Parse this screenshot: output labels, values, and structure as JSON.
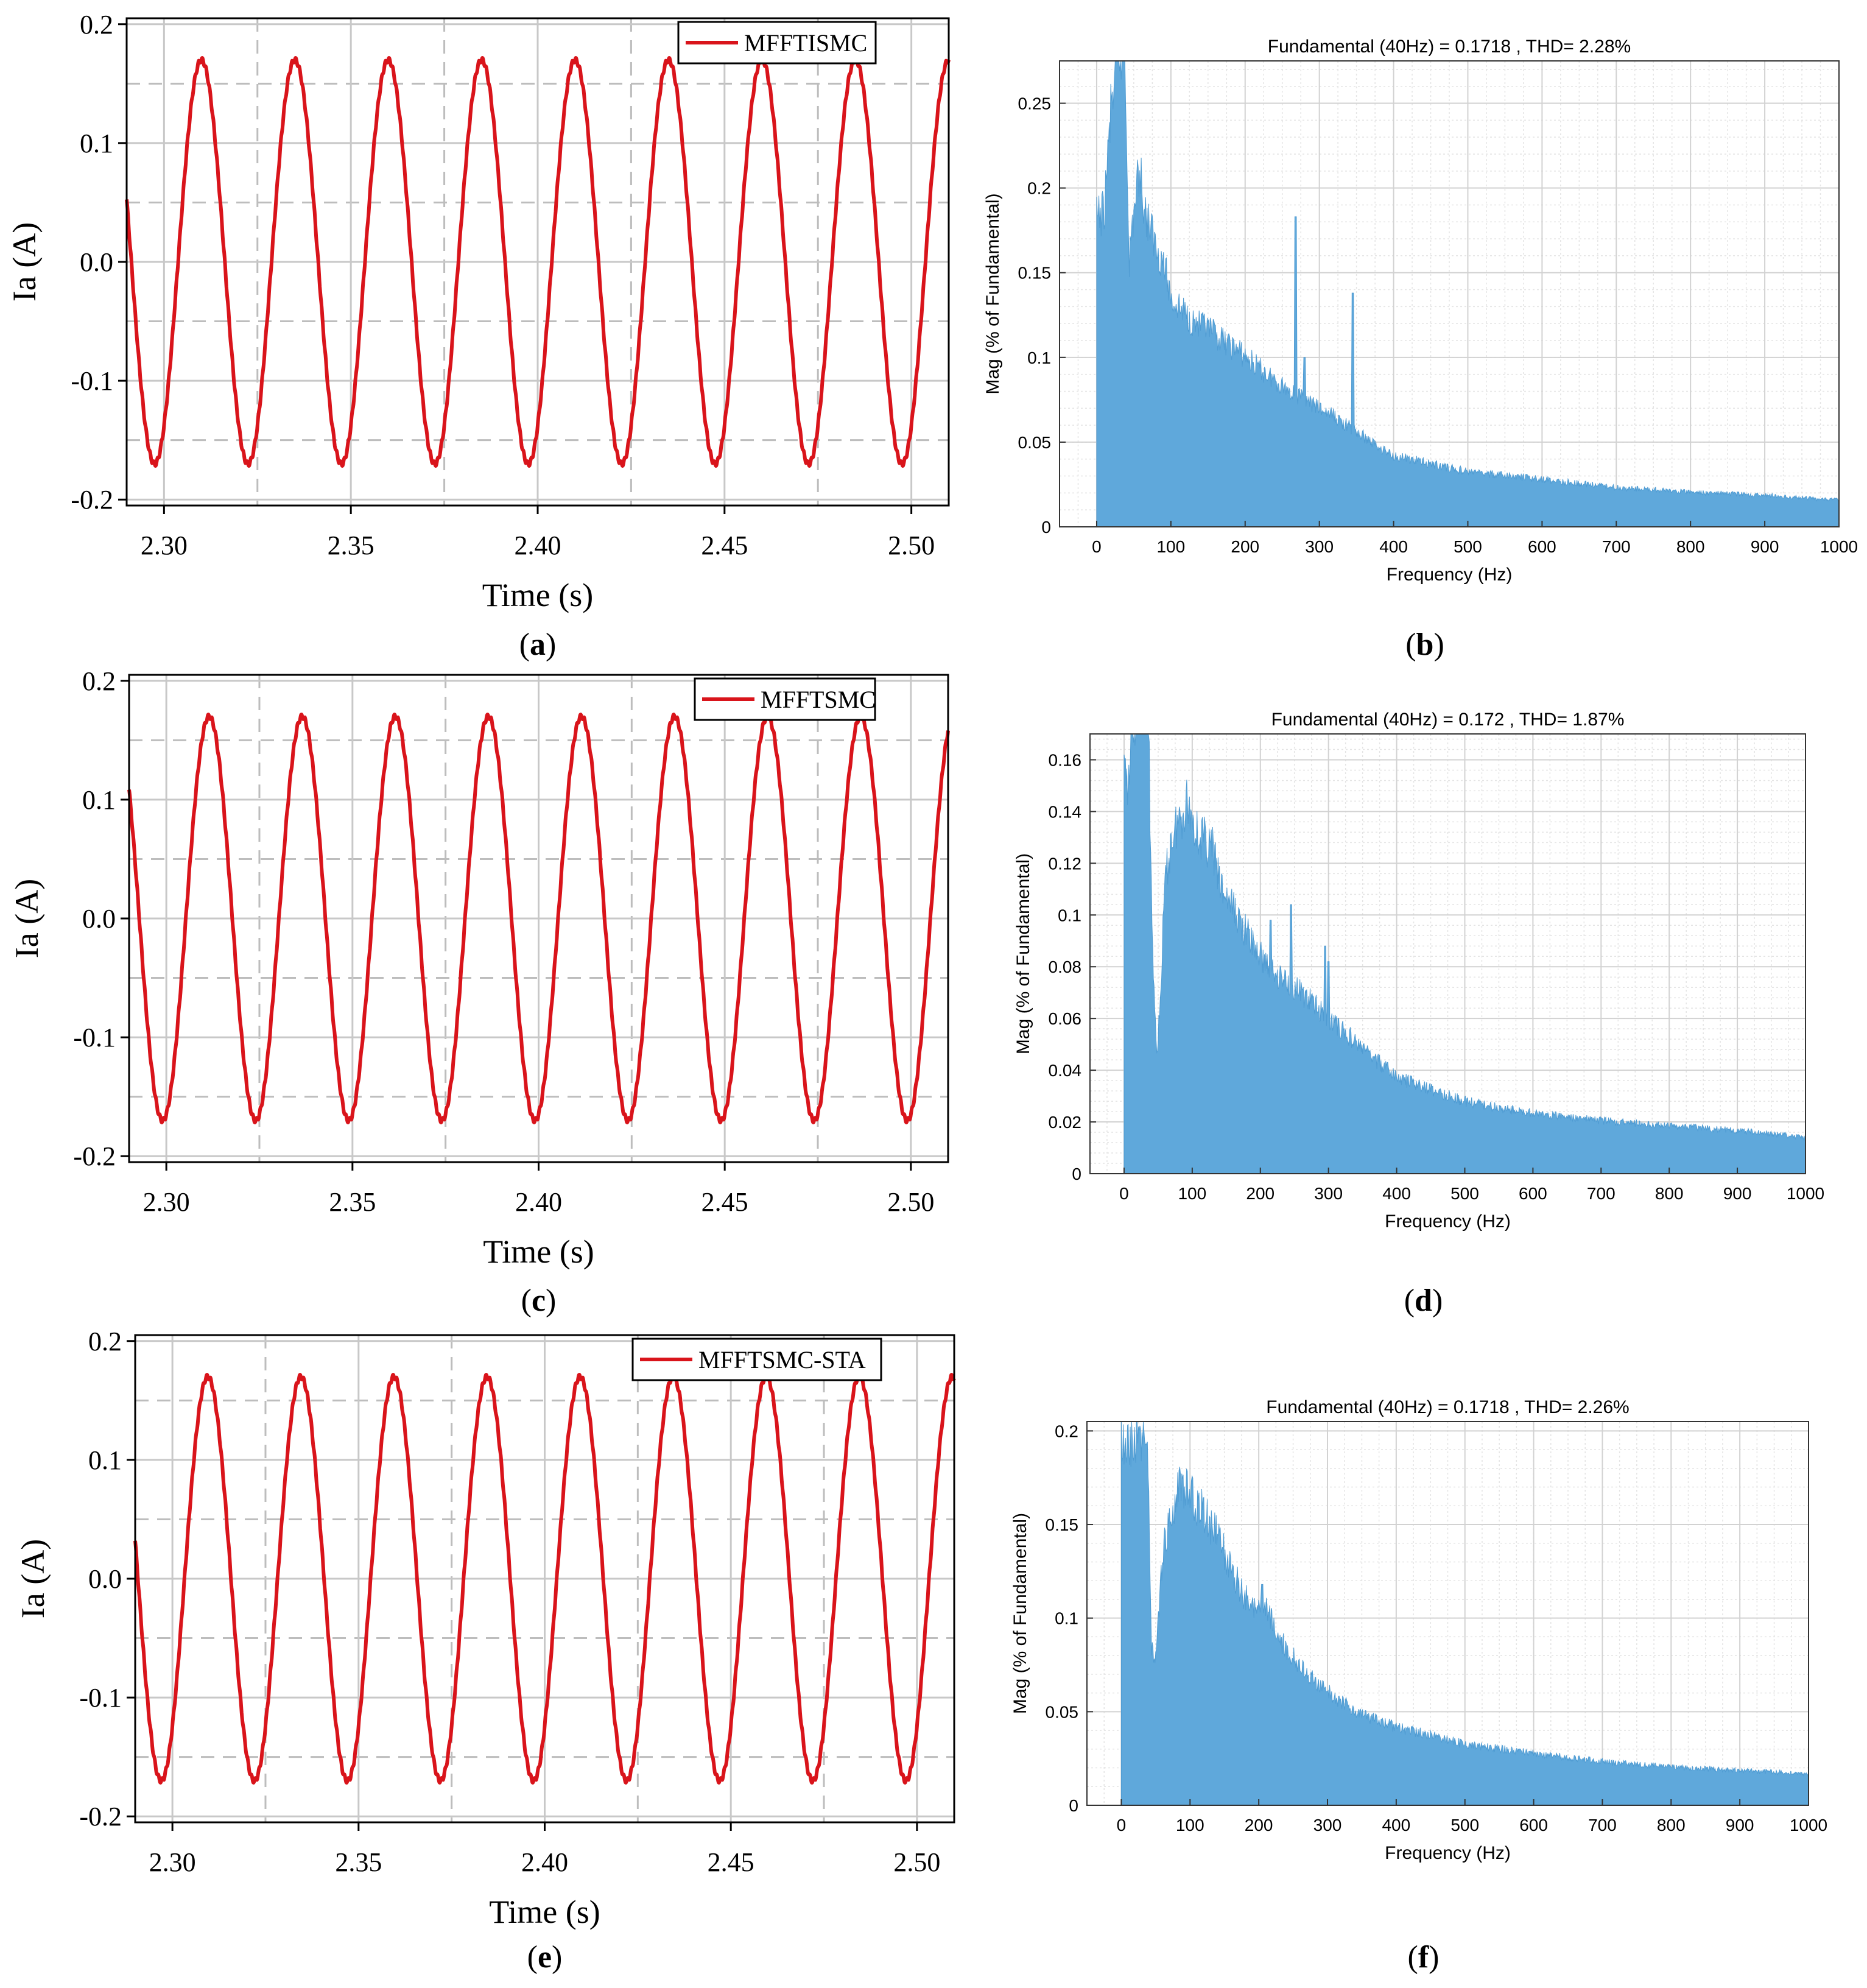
{
  "colors": {
    "signal": "#d9141b",
    "spectrum": "#5fa8db",
    "grid_major": "#c8c8c8",
    "grid_dash": "#bdbdbd",
    "axis": "#000000"
  },
  "chart_data": [
    {
      "panel": "a",
      "type": "line",
      "legend": "MFFTISMC",
      "xlabel": "Time (s)",
      "ylabel": "Ia (A)",
      "xlim": [
        2.29,
        2.51
      ],
      "ylim": [
        -0.205,
        0.205
      ],
      "xticks": [
        2.3,
        2.35,
        2.4,
        2.45,
        2.5
      ],
      "xtick_labels": [
        "2.30",
        "2.35",
        "2.40",
        "2.45",
        "2.50"
      ],
      "yticks": [
        0.2,
        0.1,
        0.0,
        -0.1,
        -0.2
      ],
      "ytick_labels": [
        "0.2",
        "0.1",
        "0.0",
        "-0.1",
        "-0.2"
      ],
      "amplitude": 0.17,
      "frequency_hz": 40,
      "peak_time": 2.31,
      "caption_label": "a"
    },
    {
      "panel": "b",
      "type": "bar",
      "title": "Fundamental (40Hz) = 0.1718 , THD= 2.28%",
      "xlabel": "Frequency (Hz)",
      "ylabel": "Mag (% of Fundamental)",
      "xlim": [
        -50,
        1000
      ],
      "ylim": [
        0,
        0.275
      ],
      "xticks": [
        0,
        100,
        200,
        300,
        400,
        500,
        600,
        700,
        800,
        900,
        1000
      ],
      "xtick_labels": [
        "0",
        "100",
        "200",
        "300",
        "400",
        "500",
        "600",
        "700",
        "800",
        "900",
        "1000"
      ],
      "yticks": [
        0,
        0.05,
        0.1,
        0.15,
        0.2,
        0.25
      ],
      "ytick_labels": [
        "0",
        "0.05",
        "0.1",
        "0.15",
        "0.2",
        "0.25"
      ],
      "envelope": {
        "f": [
          0,
          10,
          20,
          30,
          38,
          44,
          50,
          58,
          65,
          80,
          90,
          100,
          110,
          130,
          150,
          170,
          190,
          200,
          220,
          250,
          280,
          320,
          350,
          400,
          500,
          600,
          700,
          800,
          900,
          1000
        ],
        "m": [
          0.195,
          0.2,
          0.27,
          0.3,
          0.3,
          0.17,
          0.2,
          0.228,
          0.2,
          0.178,
          0.168,
          0.145,
          0.14,
          0.13,
          0.125,
          0.118,
          0.112,
          0.108,
          0.1,
          0.09,
          0.08,
          0.07,
          0.06,
          0.045,
          0.035,
          0.03,
          0.025,
          0.022,
          0.02,
          0.017
        ]
      },
      "spikes": [
        [
          268,
          0.183
        ],
        [
          345,
          0.138
        ],
        [
          280,
          0.1
        ]
      ],
      "caption_label": "b"
    },
    {
      "panel": "c",
      "type": "line",
      "legend": "MFFTSMC",
      "xlabel": "Time (s)",
      "ylabel": "Ia (A)",
      "xlim": [
        2.29,
        2.51
      ],
      "ylim": [
        -0.205,
        0.205
      ],
      "xticks": [
        2.3,
        2.35,
        2.4,
        2.45,
        2.5
      ],
      "xtick_labels": [
        "2.30",
        "2.35",
        "2.40",
        "2.45",
        "2.50"
      ],
      "yticks": [
        0.2,
        0.1,
        0.0,
        -0.1,
        -0.2
      ],
      "ytick_labels": [
        "0.2",
        "0.1",
        "0.0",
        "-0.1",
        "-0.2"
      ],
      "amplitude": 0.17,
      "frequency_hz": 40,
      "peak_time": 2.3115,
      "caption_label": "c"
    },
    {
      "panel": "d",
      "type": "bar",
      "title": "Fundamental (40Hz) = 0.172 , THD= 1.87%",
      "xlabel": "Frequency (Hz)",
      "ylabel": "Mag (% of Fundamental)",
      "xlim": [
        -50,
        1000
      ],
      "ylim": [
        0,
        0.17
      ],
      "xticks": [
        0,
        100,
        200,
        300,
        400,
        500,
        600,
        700,
        800,
        900,
        1000
      ],
      "xtick_labels": [
        "0",
        "100",
        "200",
        "300",
        "400",
        "500",
        "600",
        "700",
        "800",
        "900",
        "1000"
      ],
      "yticks": [
        0,
        0.02,
        0.04,
        0.06,
        0.08,
        0.1,
        0.12,
        0.14,
        0.16
      ],
      "ytick_labels": [
        "0",
        "0.02",
        "0.04",
        "0.06",
        "0.08",
        "0.1",
        "0.12",
        "0.14",
        "0.16"
      ],
      "envelope": {
        "f": [
          0,
          5,
          15,
          25,
          35,
          42,
          48,
          52,
          60,
          70,
          85,
          92,
          100,
          110,
          120,
          130,
          140,
          160,
          180,
          200,
          230,
          260,
          300,
          350,
          400,
          500,
          600,
          700,
          800,
          900,
          1000
        ],
        "m": [
          0.163,
          0.165,
          0.19,
          0.2,
          0.2,
          0.09,
          0.05,
          0.065,
          0.12,
          0.14,
          0.15,
          0.155,
          0.148,
          0.14,
          0.138,
          0.135,
          0.12,
          0.11,
          0.1,
          0.09,
          0.082,
          0.075,
          0.065,
          0.052,
          0.04,
          0.03,
          0.025,
          0.022,
          0.02,
          0.018,
          0.015
        ]
      },
      "spikes": [
        [
          215,
          0.098
        ],
        [
          245,
          0.104
        ],
        [
          295,
          0.088
        ],
        [
          300,
          0.082
        ]
      ],
      "caption_label": "d"
    },
    {
      "panel": "e",
      "type": "line",
      "legend": "MFFTSMC-STA",
      "xlabel": "Time (s)",
      "ylabel": "Ia (A)",
      "xlim": [
        2.29,
        2.51
      ],
      "ylim": [
        -0.205,
        0.205
      ],
      "xticks": [
        2.3,
        2.35,
        2.4,
        2.45,
        2.5
      ],
      "xtick_labels": [
        "2.30",
        "2.35",
        "2.40",
        "2.45",
        "2.50"
      ],
      "yticks": [
        0.2,
        0.1,
        0.0,
        -0.1,
        -0.2
      ],
      "ytick_labels": [
        "0.2",
        "0.1",
        "0.0",
        "-0.1",
        "-0.2"
      ],
      "amplitude": 0.17,
      "frequency_hz": 40,
      "peak_time": 2.3095,
      "caption_label": "e"
    },
    {
      "panel": "f",
      "type": "bar",
      "title": "Fundamental (40Hz) = 0.1718 , THD= 2.26%",
      "xlabel": "Frequency (Hz)",
      "ylabel": "Mag (% of Fundamental)",
      "xlim": [
        -50,
        1000
      ],
      "ylim": [
        0,
        0.205
      ],
      "xticks": [
        0,
        100,
        200,
        300,
        400,
        500,
        600,
        700,
        800,
        900,
        1000
      ],
      "xtick_labels": [
        "0",
        "100",
        "200",
        "300",
        "400",
        "500",
        "600",
        "700",
        "800",
        "900",
        "1000"
      ],
      "yticks": [
        0,
        0.05,
        0.1,
        0.15,
        0.2
      ],
      "ytick_labels": [
        "0",
        "0.05",
        "0.1",
        "0.15",
        "0.2"
      ],
      "envelope": {
        "f": [
          0,
          10,
          20,
          30,
          38,
          44,
          50,
          60,
          70,
          85,
          95,
          105,
          120,
          140,
          160,
          180,
          195,
          210,
          230,
          260,
          300,
          350,
          400,
          500,
          600,
          700,
          800,
          900,
          1000
        ],
        "m": [
          0.21,
          0.21,
          0.21,
          0.21,
          0.21,
          0.09,
          0.085,
          0.14,
          0.168,
          0.182,
          0.183,
          0.175,
          0.168,
          0.155,
          0.135,
          0.12,
          0.11,
          0.115,
          0.095,
          0.08,
          0.065,
          0.052,
          0.045,
          0.035,
          0.03,
          0.025,
          0.022,
          0.02,
          0.018
        ]
      },
      "spikes": [
        [
          205,
          0.118
        ]
      ],
      "caption_label": "f"
    }
  ]
}
